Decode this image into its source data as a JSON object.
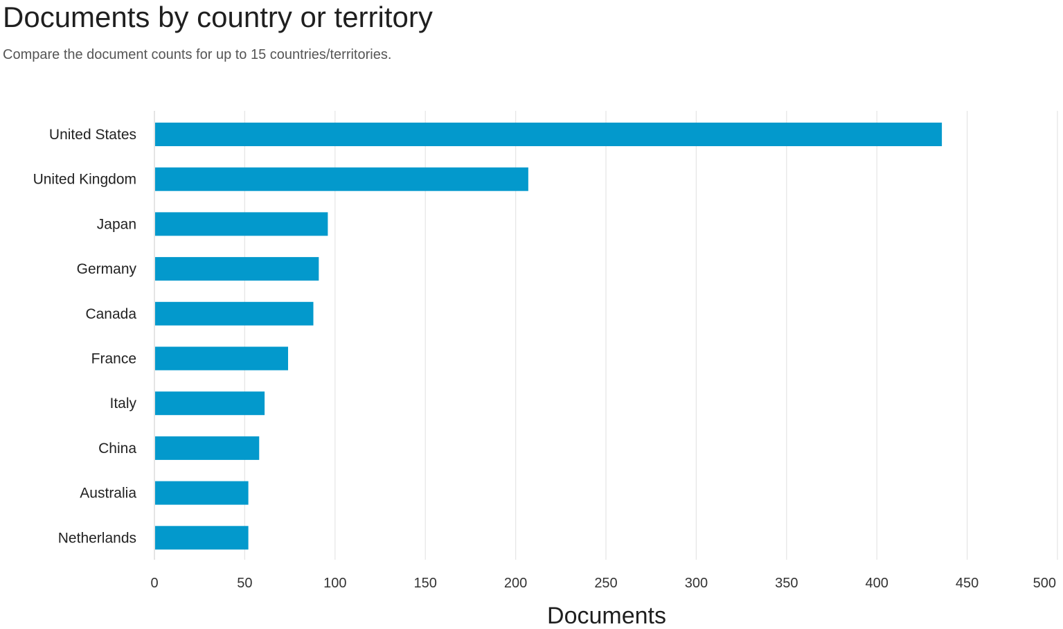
{
  "chart_data": {
    "type": "bar",
    "orientation": "horizontal",
    "title": "Documents by country or territory",
    "subtitle": "Compare the document counts for up to 15 countries/territories.",
    "xlabel": "Documents",
    "ylabel": "",
    "categories": [
      "United States",
      "United Kingdom",
      "Japan",
      "Germany",
      "Canada",
      "France",
      "Italy",
      "China",
      "Australia",
      "Netherlands"
    ],
    "values": [
      436,
      207,
      96,
      91,
      88,
      74,
      61,
      58,
      52,
      52
    ],
    "xlim": [
      0,
      500
    ],
    "xticks": [
      0,
      50,
      100,
      150,
      200,
      250,
      300,
      350,
      400,
      450,
      500
    ],
    "grid": "vertical",
    "bar_color": "#0399cc"
  }
}
